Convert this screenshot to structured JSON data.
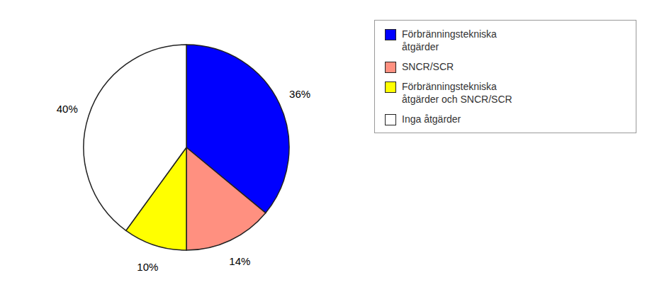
{
  "chart_data": {
    "type": "pie",
    "categories": [
      "Förbränningstekniska\nåtgärder",
      "SNCR/SCR",
      "Förbränningstekniska\nåtgärder och SNCR/SCR",
      "Inga åtgärder"
    ],
    "values": [
      36,
      14,
      10,
      40
    ],
    "value_labels": [
      "36%",
      "14%",
      "10%",
      "40%"
    ],
    "colors": [
      "#0000FF",
      "#FF9080",
      "#FFFF00",
      "#FFFFFF"
    ],
    "data_labels": true,
    "legend": "right"
  }
}
